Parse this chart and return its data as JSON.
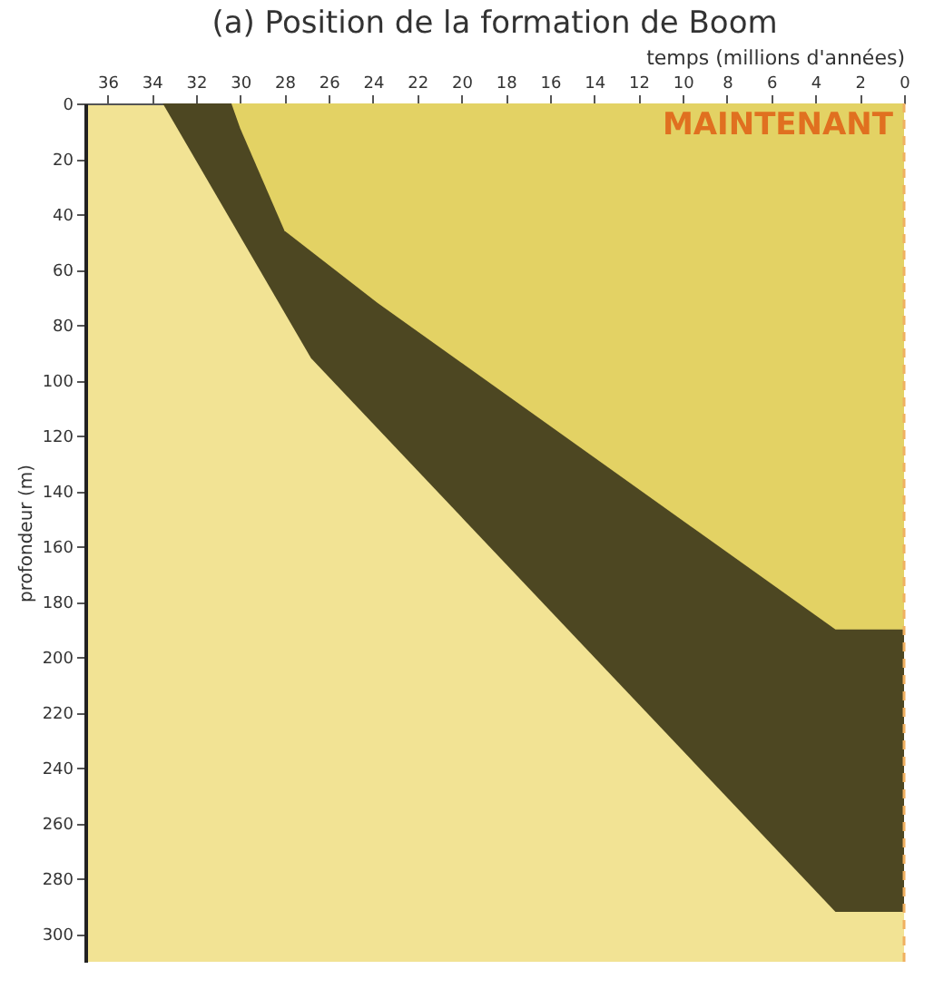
{
  "chart_data": {
    "type": "area",
    "title": "(a) Position de la formation de Boom",
    "xlabel": "temps (millions d'années)",
    "ylabel": "profondeur (m)",
    "xlim": [
      37,
      0
    ],
    "xticks": [
      36,
      34,
      32,
      30,
      28,
      26,
      24,
      22,
      20,
      18,
      16,
      14,
      12,
      10,
      8,
      6,
      4,
      2,
      0
    ],
    "ylim": [
      310,
      0
    ],
    "yticks": [
      0,
      20,
      40,
      60,
      80,
      100,
      120,
      140,
      160,
      180,
      200,
      220,
      240,
      260,
      280,
      300
    ],
    "series": [
      {
        "color": "#4d4722",
        "x": [
          33.5,
          26.8,
          3.1,
          0
        ],
        "values": [
          0,
          92,
          292,
          292
        ]
      },
      {
        "color": "#e3d264",
        "x": [
          30.4,
          30,
          28,
          23.8,
          3.1,
          0
        ],
        "values": [
          0,
          9,
          46,
          72,
          190,
          190
        ]
      }
    ],
    "ref_lines": [
      {
        "axis": "x",
        "value": 0,
        "label": "MAINTENANT",
        "color": "#f0b060",
        "line_style": "dashed"
      }
    ]
  }
}
